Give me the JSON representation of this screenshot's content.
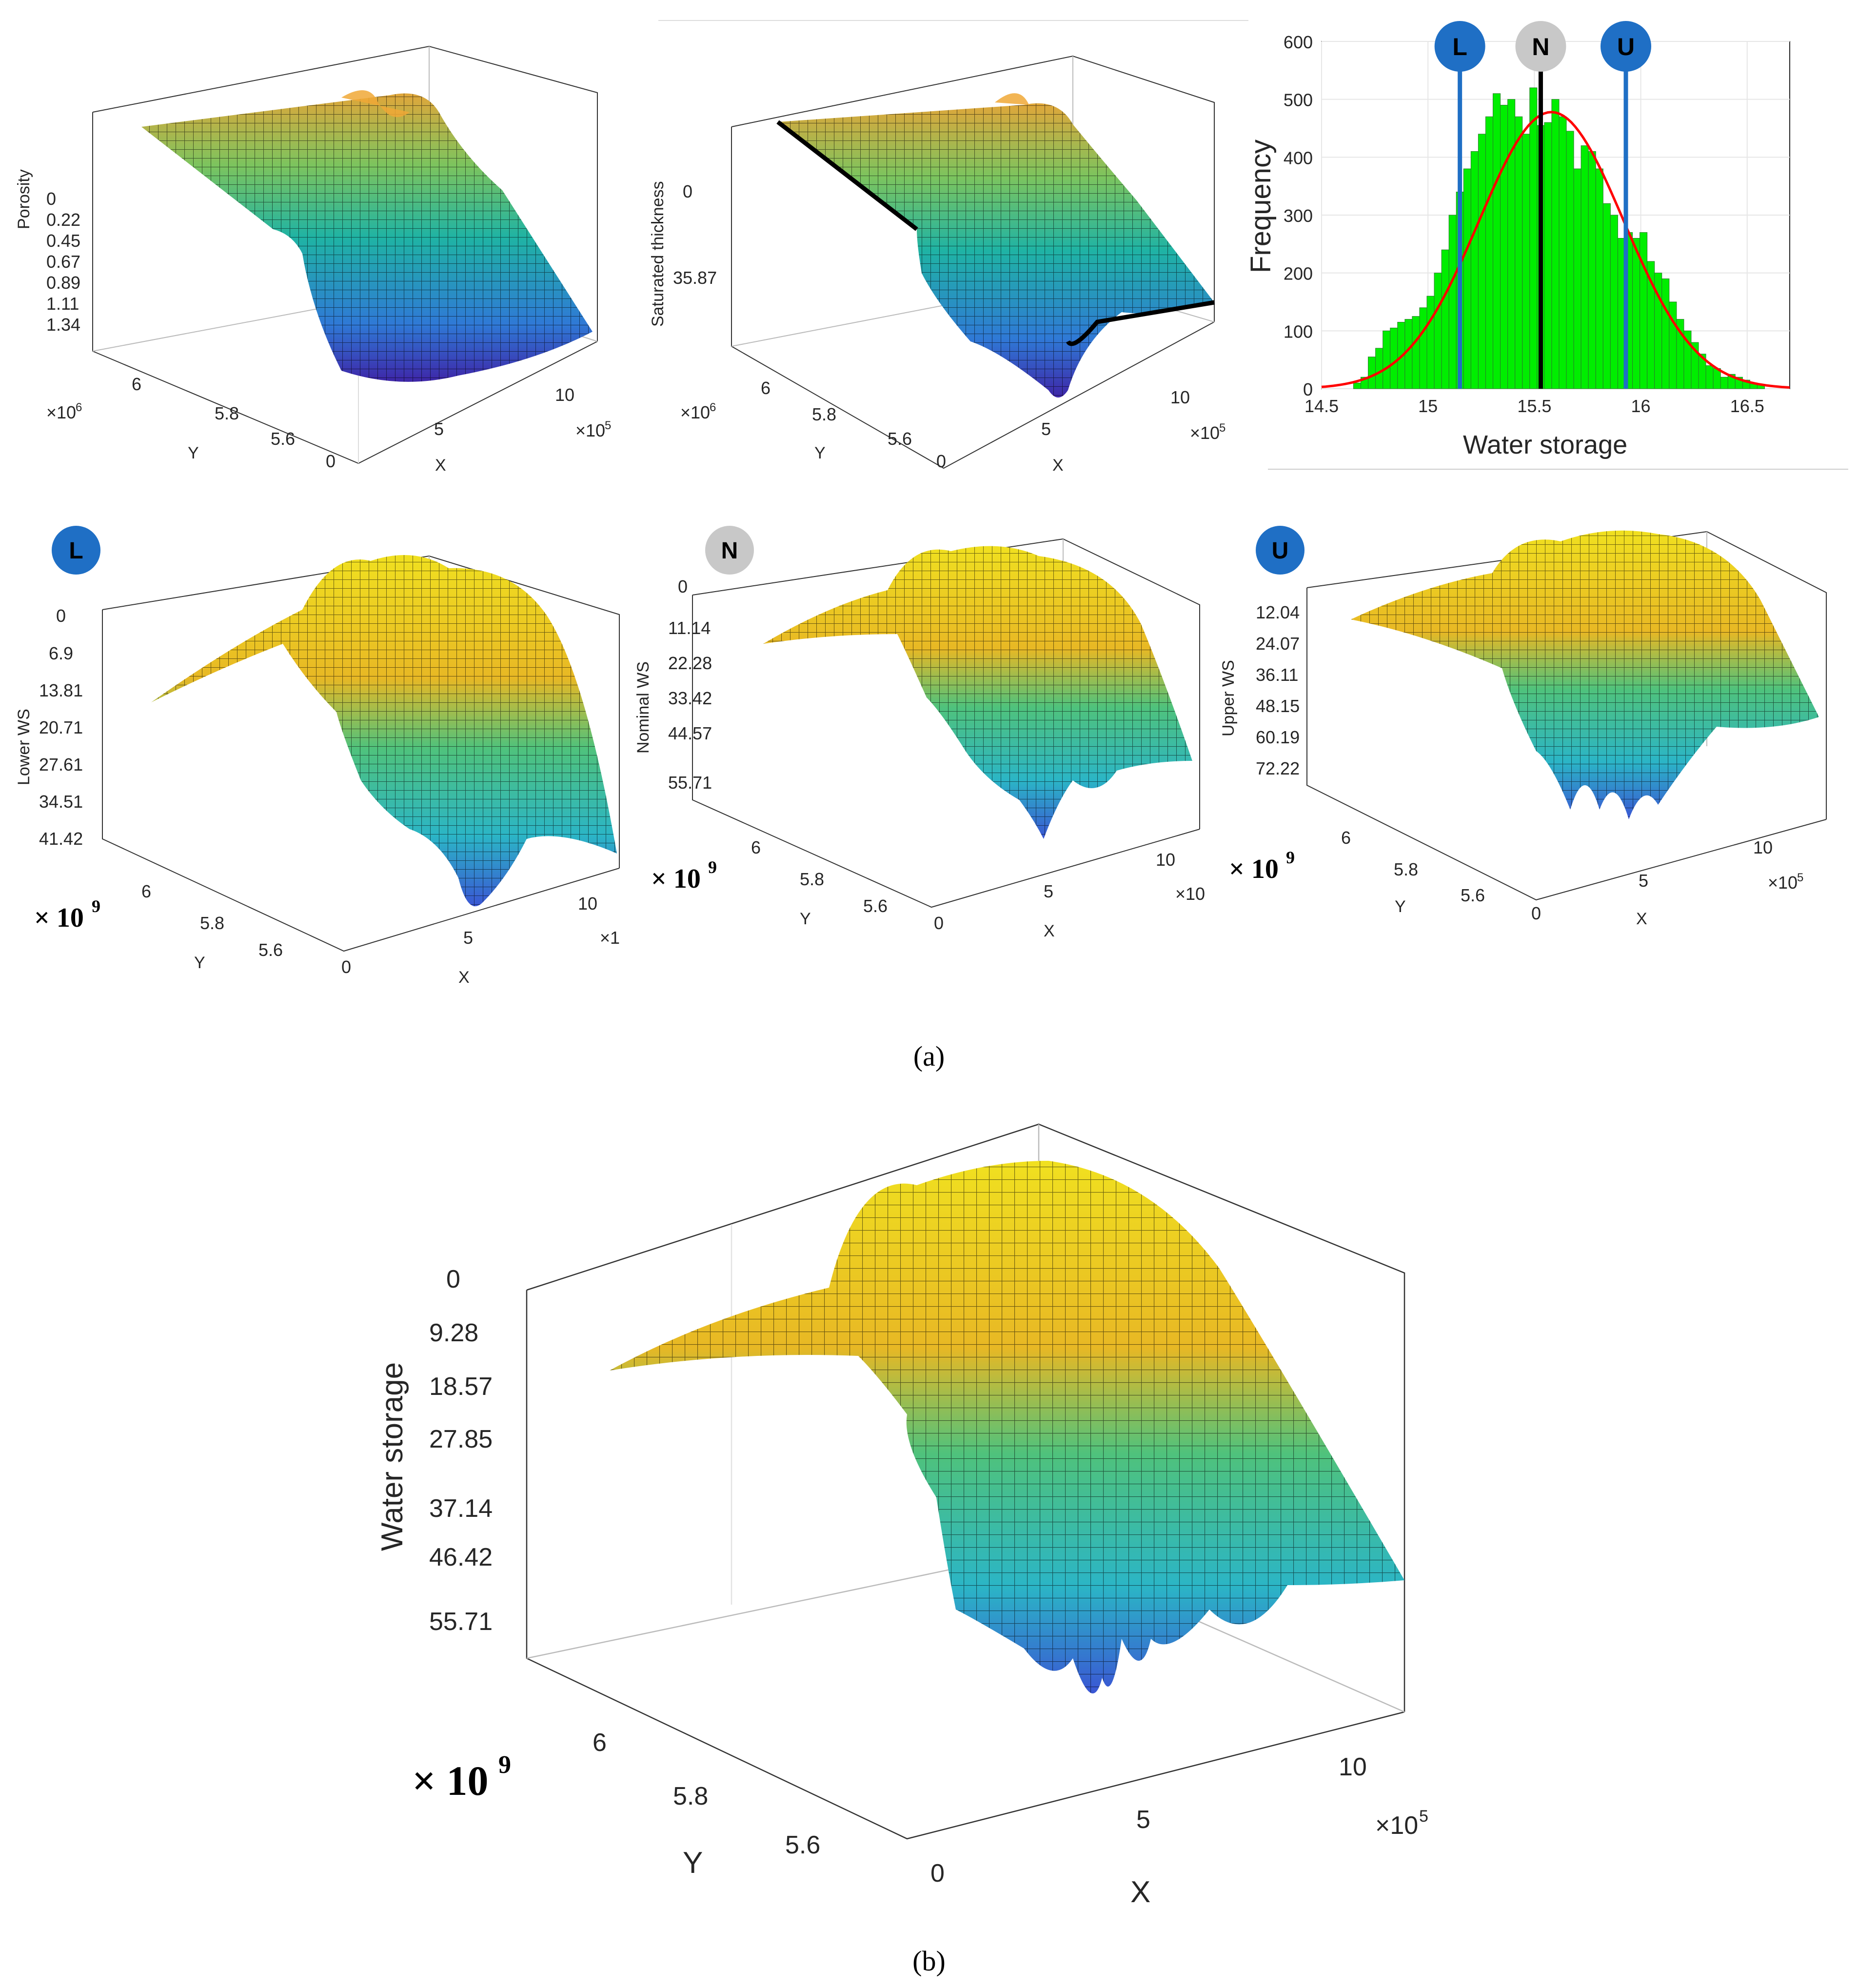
{
  "colors": {
    "surface_low": "#3e26a8",
    "surface_mid": "#21b7a0",
    "surface_high": "#f9fb0e",
    "hist_bar": "#00ee00",
    "hist_curve": "#ff0000",
    "marker_blue": "#1f6fc5",
    "marker_grey": "#c8c8c8",
    "nominal_line": "#000000"
  },
  "captions": {
    "a": "(a)",
    "b": "(b)"
  },
  "markers": {
    "L": "L",
    "N": "N",
    "U": "U"
  },
  "scale_label": "× 10",
  "scale_exp": "9",
  "chart_data": [
    {
      "id": "porosity",
      "type": "surface3d",
      "zlabel": "Porosity",
      "ztick_labels": [
        "0",
        "0.22",
        "0.45",
        "0.67",
        "0.89",
        "1.11",
        "1.34"
      ],
      "xlabel": "X",
      "x_ticks": [
        "0",
        "5",
        "10"
      ],
      "x_multiplier": "×10",
      "x_mult_exp": "5",
      "ylabel": "Y",
      "y_ticks": [
        "5.6",
        "5.8",
        "6"
      ],
      "y_multiplier": "×10",
      "y_mult_exp": "6"
    },
    {
      "id": "saturated_thickness",
      "type": "surface3d",
      "zlabel": "Saturated thickness",
      "ztick_labels": [
        "0",
        "35.87"
      ],
      "xlabel": "X",
      "x_ticks": [
        "0",
        "5",
        "10"
      ],
      "x_multiplier": "×10",
      "x_mult_exp": "5",
      "ylabel": "Y",
      "y_ticks": [
        "5.6",
        "5.8",
        "6"
      ],
      "y_multiplier": "×10",
      "y_mult_exp": "6"
    },
    {
      "id": "histogram",
      "type": "bar",
      "xlabel": "Water storage",
      "ylabel": "Frequency",
      "xlim": [
        14.5,
        16.7
      ],
      "ylim": [
        0,
        600
      ],
      "x_ticks": [
        "14.5",
        "15",
        "15.5",
        "16",
        "16.5"
      ],
      "y_ticks": [
        "0",
        "100",
        "200",
        "300",
        "400",
        "500",
        "600"
      ],
      "bin_start": 14.65,
      "bin_width": 0.0345,
      "values": [
        10,
        20,
        55,
        70,
        100,
        105,
        115,
        120,
        125,
        140,
        160,
        200,
        240,
        300,
        340,
        380,
        410,
        440,
        470,
        510,
        490,
        500,
        470,
        440,
        520,
        455,
        460,
        500,
        470,
        445,
        380,
        420,
        410,
        380,
        320,
        300,
        260,
        270,
        260,
        270,
        220,
        200,
        190,
        150,
        120,
        100,
        80,
        60,
        40,
        35,
        20,
        25,
        20,
        15,
        10,
        8
      ],
      "normal_fit": {
        "mean": 15.58,
        "std": 0.34,
        "peak": 478
      },
      "lines": {
        "L": 15.15,
        "N": 15.53,
        "U": 15.93
      }
    },
    {
      "id": "lower_ws",
      "type": "surface3d",
      "zlabel": "Lower WS",
      "ztick_labels": [
        "0",
        "6.9",
        "13.81",
        "20.71",
        "27.61",
        "34.51",
        "41.42"
      ],
      "xlabel": "X",
      "x_ticks": [
        "0",
        "5",
        "10"
      ],
      "x_multiplier": "×1",
      "ylabel": "Y",
      "y_ticks": [
        "5.6",
        "5.8",
        "6"
      ]
    },
    {
      "id": "nominal_ws",
      "type": "surface3d",
      "zlabel": "Nominal WS",
      "ztick_labels": [
        "0",
        "11.14",
        "22.28",
        "33.42",
        "44.57",
        "55.71"
      ],
      "xlabel": "X",
      "x_ticks": [
        "0",
        "5",
        "10"
      ],
      "x_multiplier": "×10",
      "ylabel": "Y",
      "y_ticks": [
        "5.6",
        "5.8",
        "6"
      ]
    },
    {
      "id": "upper_ws",
      "type": "surface3d",
      "zlabel": "Upper WS",
      "ztick_labels": [
        "12.04",
        "24.07",
        "36.11",
        "48.15",
        "60.19",
        "72.22"
      ],
      "xlabel": "X",
      "x_ticks": [
        "0",
        "5",
        "10"
      ],
      "x_multiplier": "×10",
      "x_mult_exp": "5",
      "ylabel": "Y",
      "y_ticks": [
        "5.6",
        "5.8",
        "6"
      ]
    },
    {
      "id": "water_storage",
      "type": "surface3d",
      "zlabel": "Water storage",
      "ztick_labels": [
        "0",
        "9.28",
        "18.57",
        "27.85",
        "37.14",
        "46.42",
        "55.71"
      ],
      "xlabel": "X",
      "x_ticks": [
        "0",
        "5",
        "10"
      ],
      "x_multiplier": "×10",
      "x_mult_exp": "5",
      "ylabel": "Y",
      "y_ticks": [
        "5.6",
        "5.8",
        "6"
      ]
    }
  ]
}
